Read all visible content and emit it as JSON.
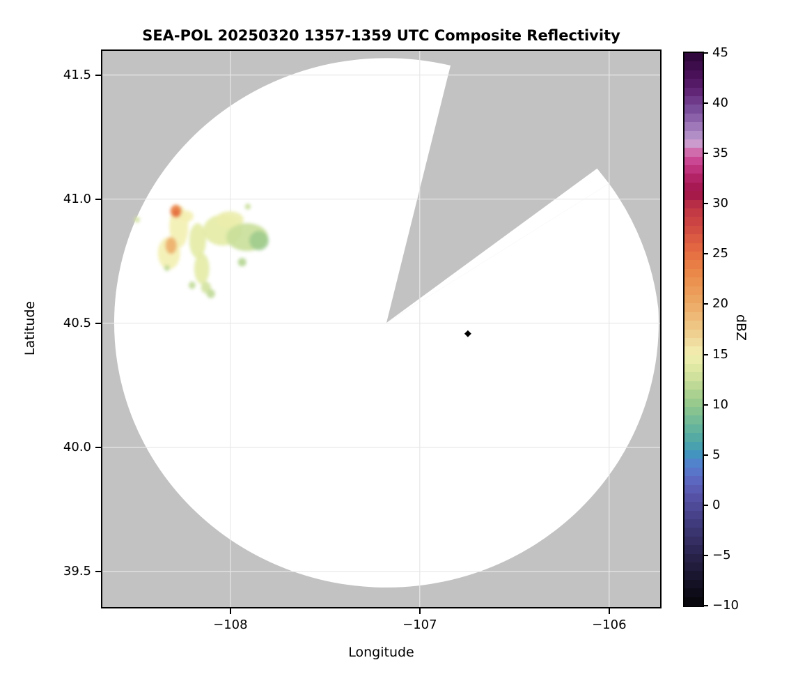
{
  "chart_data": {
    "type": "heatmap",
    "title": "SEA-POL 20250320 1357-1359 UTC Composite Reflectivity",
    "xlabel": "Longitude",
    "ylabel": "Latitude",
    "xlim": [
      -108.676,
      -105.731
    ],
    "ylim": [
      39.357,
      41.597
    ],
    "grid": true,
    "gridline_color": "#e8e8e8",
    "x_ticks": [
      {
        "v": -108,
        "label": "−108"
      },
      {
        "v": -107,
        "label": "−107"
      },
      {
        "v": -106,
        "label": "−106"
      }
    ],
    "y_ticks": [
      {
        "v": 41.5,
        "label": "41.5"
      },
      {
        "v": 41.0,
        "label": "41.0"
      },
      {
        "v": 40.5,
        "label": "40.5"
      },
      {
        "v": 40.0,
        "label": "40.0"
      },
      {
        "v": 39.5,
        "label": "39.5"
      }
    ],
    "colorbar": {
      "label": "dBZ",
      "vmin": -10,
      "vmax": 45,
      "n_bands": 64,
      "ticks": [
        {
          "v": 45,
          "label": "45"
        },
        {
          "v": 40,
          "label": "40"
        },
        {
          "v": 35,
          "label": "35"
        },
        {
          "v": 30,
          "label": "30"
        },
        {
          "v": 25,
          "label": "25"
        },
        {
          "v": 20,
          "label": "20"
        },
        {
          "v": 15,
          "label": "15"
        },
        {
          "v": 10,
          "label": "10"
        },
        {
          "v": 5,
          "label": "5"
        },
        {
          "v": 0,
          "label": "0"
        },
        {
          "v": -5,
          "label": "−5"
        },
        {
          "v": -10,
          "label": "−10"
        }
      ],
      "anchors": [
        [
          45,
          "#2b0636"
        ],
        [
          44,
          "#390b46"
        ],
        [
          43,
          "#471056"
        ],
        [
          42,
          "#551a66"
        ],
        [
          41,
          "#632878"
        ],
        [
          40,
          "#71408e"
        ],
        [
          39,
          "#8156a2"
        ],
        [
          38,
          "#9770b4"
        ],
        [
          37,
          "#ad89c4"
        ],
        [
          36.2,
          "#c79fd2"
        ],
        [
          35.6,
          "#d393c6"
        ],
        [
          35,
          "#cf62a6"
        ],
        [
          34,
          "#c83d8c"
        ],
        [
          33,
          "#b92a72"
        ],
        [
          32,
          "#a91b57"
        ],
        [
          31,
          "#a3164b"
        ],
        [
          30,
          "#b62c46"
        ],
        [
          29,
          "#c43c45"
        ],
        [
          28,
          "#cd4743"
        ],
        [
          27,
          "#d65342"
        ],
        [
          26,
          "#e06241"
        ],
        [
          25,
          "#e56f42"
        ],
        [
          24,
          "#e87c45"
        ],
        [
          23,
          "#ea894b"
        ],
        [
          22,
          "#eb9552"
        ],
        [
          21,
          "#eca05b"
        ],
        [
          20,
          "#edaa66"
        ],
        [
          19,
          "#eeb673"
        ],
        [
          18,
          "#eec482"
        ],
        [
          17,
          "#efd192"
        ],
        [
          16,
          "#f0dfa3"
        ],
        [
          15,
          "#f3f0b2"
        ],
        [
          14,
          "#e4eba6"
        ],
        [
          13,
          "#d3e39f"
        ],
        [
          12,
          "#c0da97"
        ],
        [
          11,
          "#aad190"
        ],
        [
          10,
          "#94c88d"
        ],
        [
          9,
          "#7fc093"
        ],
        [
          8,
          "#6bb79a"
        ],
        [
          7,
          "#58ada1"
        ],
        [
          6,
          "#4aa2ac"
        ],
        [
          5,
          "#4493c1"
        ],
        [
          4,
          "#5380cd"
        ],
        [
          3,
          "#5b70c9"
        ],
        [
          2,
          "#5c60b9"
        ],
        [
          1,
          "#5755a9"
        ],
        [
          0,
          "#4f4b99"
        ],
        [
          -1,
          "#47428a"
        ],
        [
          -2,
          "#3f3a7a"
        ],
        [
          -3,
          "#38326a"
        ],
        [
          -4,
          "#302a5b"
        ],
        [
          -5,
          "#29234c"
        ],
        [
          -6,
          "#221c3e"
        ],
        [
          -7,
          "#1b1630"
        ],
        [
          -8,
          "#141023"
        ],
        [
          -9,
          "#0c0a15"
        ],
        [
          -10,
          "#070608"
        ]
      ]
    },
    "radar": {
      "center": {
        "lon": -107.176,
        "lat": 40.502
      },
      "coverage_rx_deg": 1.4375,
      "coverage_ry_deg": 1.066,
      "nodata_color": "#c2c2c2",
      "blocked_sector_az_deg": [
        14,
        53.8
      ],
      "partial_sector": {
        "az_from_deg": 58,
        "az_to_deg": 87,
        "range_limit_lat_deg": 1.058
      }
    },
    "site_marker": {
      "lon": -106.746,
      "lat": 40.458,
      "shape": "diamond",
      "color": "#000000"
    },
    "echo_cells": [
      {
        "lon": -108.272,
        "lat": 40.889,
        "rx_deg": 0.05,
        "ry_deg": 0.085,
        "dbz": 15
      },
      {
        "lon": -108.324,
        "lat": 40.782,
        "rx_deg": 0.059,
        "ry_deg": 0.065,
        "dbz": 15
      },
      {
        "lon": -108.232,
        "lat": 40.931,
        "rx_deg": 0.037,
        "ry_deg": 0.023,
        "dbz": 15
      },
      {
        "lon": -108.287,
        "lat": 40.951,
        "rx_deg": 0.03,
        "ry_deg": 0.026,
        "dbz": 23.5
      },
      {
        "lon": -108.287,
        "lat": 40.945,
        "rx_deg": 0.018,
        "ry_deg": 0.015,
        "dbz": 25
      },
      {
        "lon": -108.313,
        "lat": 40.813,
        "rx_deg": 0.03,
        "ry_deg": 0.034,
        "dbz": 19.5
      },
      {
        "lon": -108.173,
        "lat": 40.833,
        "rx_deg": 0.044,
        "ry_deg": 0.07,
        "dbz": 14
      },
      {
        "lon": -108.151,
        "lat": 40.72,
        "rx_deg": 0.04,
        "ry_deg": 0.062,
        "dbz": 14
      },
      {
        "lon": -108.129,
        "lat": 40.644,
        "rx_deg": 0.026,
        "ry_deg": 0.023,
        "dbz": 13
      },
      {
        "lon": -108.04,
        "lat": 40.875,
        "rx_deg": 0.103,
        "ry_deg": 0.062,
        "dbz": 14
      },
      {
        "lon": -108.004,
        "lat": 40.917,
        "rx_deg": 0.074,
        "ry_deg": 0.034,
        "dbz": 14.5
      },
      {
        "lon": -107.912,
        "lat": 40.847,
        "rx_deg": 0.11,
        "ry_deg": 0.056,
        "dbz": 12.5
      },
      {
        "lon": -107.849,
        "lat": 40.833,
        "rx_deg": 0.051,
        "ry_deg": 0.039,
        "dbz": 10.5
      },
      {
        "lon": -107.938,
        "lat": 40.746,
        "rx_deg": 0.022,
        "ry_deg": 0.017,
        "dbz": 11.5
      },
      {
        "lon": -108.202,
        "lat": 40.653,
        "rx_deg": 0.018,
        "ry_deg": 0.015,
        "dbz": 12
      },
      {
        "lon": -108.103,
        "lat": 40.619,
        "rx_deg": 0.022,
        "ry_deg": 0.018,
        "dbz": 12
      },
      {
        "lon": -108.493,
        "lat": 40.917,
        "rx_deg": 0.015,
        "ry_deg": 0.012,
        "dbz": 13
      },
      {
        "lon": -108.335,
        "lat": 40.723,
        "rx_deg": 0.015,
        "ry_deg": 0.012,
        "dbz": 12
      },
      {
        "lon": -107.908,
        "lat": 40.97,
        "rx_deg": 0.015,
        "ry_deg": 0.012,
        "dbz": 12.5
      }
    ]
  }
}
